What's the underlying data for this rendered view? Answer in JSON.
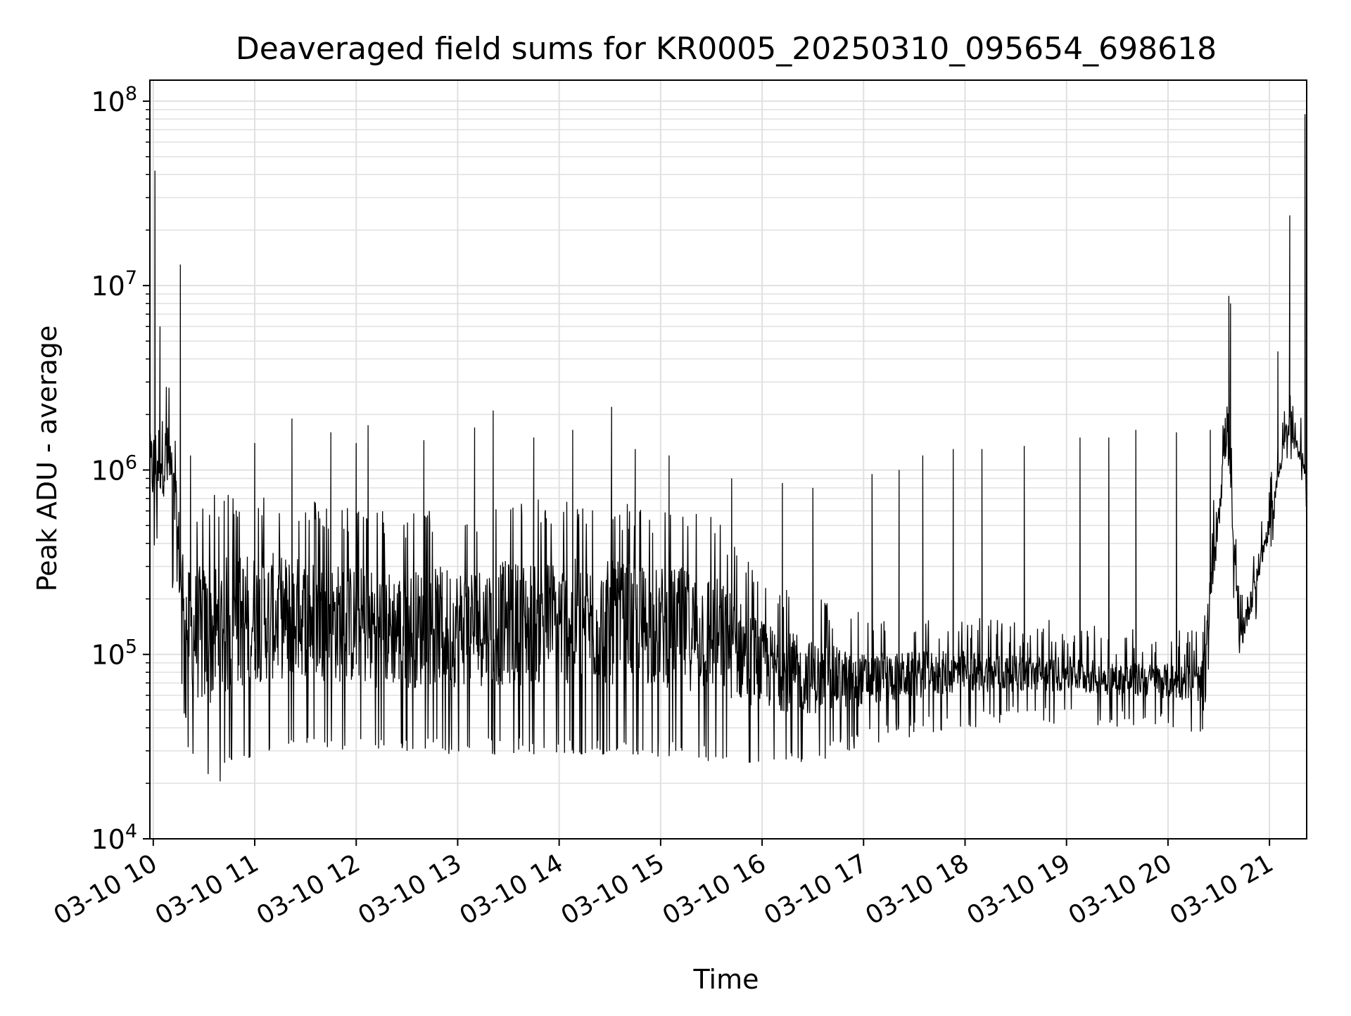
{
  "chart_data": {
    "type": "line",
    "title": "Deaveraged field sums for KR0005_20250310_095654_698618",
    "xlabel": "Time",
    "ylabel": "Peak ADU - average",
    "yscale": "log",
    "ylim": [
      10000,
      130000000
    ],
    "xlim": [
      "2025-03-10 09:58",
      "2025-03-10 21:22"
    ],
    "grid": true,
    "line_color": "#000000",
    "grid_color": "#e0e0e0",
    "x_ticks": [
      {
        "value": "2025-03-10 10:00",
        "label": "03-10 10"
      },
      {
        "value": "2025-03-10 11:00",
        "label": "03-10 11"
      },
      {
        "value": "2025-03-10 12:00",
        "label": "03-10 12"
      },
      {
        "value": "2025-03-10 13:00",
        "label": "03-10 13"
      },
      {
        "value": "2025-03-10 14:00",
        "label": "03-10 14"
      },
      {
        "value": "2025-03-10 15:00",
        "label": "03-10 15"
      },
      {
        "value": "2025-03-10 16:00",
        "label": "03-10 16"
      },
      {
        "value": "2025-03-10 17:00",
        "label": "03-10 17"
      },
      {
        "value": "2025-03-10 18:00",
        "label": "03-10 18"
      },
      {
        "value": "2025-03-10 19:00",
        "label": "03-10 19"
      },
      {
        "value": "2025-03-10 20:00",
        "label": "03-10 20"
      },
      {
        "value": "2025-03-10 21:00",
        "label": "03-10 21"
      }
    ],
    "y_ticks": [
      {
        "value": 10000,
        "base": "10",
        "exp": "4"
      },
      {
        "value": 100000,
        "base": "10",
        "exp": "5"
      },
      {
        "value": 1000000,
        "base": "10",
        "exp": "6"
      },
      {
        "value": 10000000,
        "base": "10",
        "exp": "7"
      },
      {
        "value": 100000000,
        "base": "10",
        "exp": "8"
      }
    ],
    "series": [
      {
        "envelope": [
          {
            "t": "2025-03-10 09:58",
            "low": 400000,
            "high": 2000000
          },
          {
            "t": "2025-03-10 10:05",
            "low": 500000,
            "high": 2500000
          },
          {
            "t": "2025-03-10 10:10",
            "low": 400000,
            "high": 2200000
          },
          {
            "t": "2025-03-10 10:15",
            "low": 120000,
            "high": 900000
          },
          {
            "t": "2025-03-10 10:20",
            "low": 40000,
            "high": 400000
          },
          {
            "t": "2025-03-10 10:30",
            "low": 22000,
            "high": 500000
          },
          {
            "t": "2025-03-10 10:45",
            "low": 28000,
            "high": 550000
          },
          {
            "t": "2025-03-10 11:00",
            "low": 35000,
            "high": 550000
          },
          {
            "t": "2025-03-10 11:30",
            "low": 40000,
            "high": 500000
          },
          {
            "t": "2025-03-10 12:00",
            "low": 35000,
            "high": 450000
          },
          {
            "t": "2025-03-10 12:30",
            "low": 35000,
            "high": 420000
          },
          {
            "t": "2025-03-10 13:00",
            "low": 35000,
            "high": 450000
          },
          {
            "t": "2025-03-10 13:30",
            "low": 35000,
            "high": 480000
          },
          {
            "t": "2025-03-10 14:00",
            "low": 35000,
            "high": 500000
          },
          {
            "t": "2025-03-10 14:30",
            "low": 35000,
            "high": 480000
          },
          {
            "t": "2025-03-10 15:00",
            "low": 35000,
            "high": 450000
          },
          {
            "t": "2025-03-10 15:30",
            "low": 32000,
            "high": 420000
          },
          {
            "t": "2025-03-10 16:00",
            "low": 32000,
            "high": 200000
          },
          {
            "t": "2025-03-10 16:30",
            "low": 32000,
            "high": 150000
          },
          {
            "t": "2025-03-10 17:00",
            "low": 40000,
            "high": 120000
          },
          {
            "t": "2025-03-10 17:30",
            "low": 45000,
            "high": 120000
          },
          {
            "t": "2025-03-10 18:00",
            "low": 50000,
            "high": 120000
          },
          {
            "t": "2025-03-10 18:30",
            "low": 52000,
            "high": 110000
          },
          {
            "t": "2025-03-10 19:00",
            "low": 52000,
            "high": 110000
          },
          {
            "t": "2025-03-10 19:30",
            "low": 50000,
            "high": 100000
          },
          {
            "t": "2025-03-10 20:00",
            "low": 48000,
            "high": 100000
          },
          {
            "t": "2025-03-10 20:20",
            "low": 45000,
            "high": 100000
          },
          {
            "t": "2025-03-10 20:35",
            "low": 1000000,
            "high": 3000000
          },
          {
            "t": "2025-03-10 20:42",
            "low": 80000,
            "high": 150000
          },
          {
            "t": "2025-03-10 20:50",
            "low": 150000,
            "high": 300000
          },
          {
            "t": "2025-03-10 21:00",
            "low": 400000,
            "high": 600000
          },
          {
            "t": "2025-03-10 21:10",
            "low": 1300000,
            "high": 2000000
          },
          {
            "t": "2025-03-10 21:20",
            "low": 1000000,
            "high": 1300000
          },
          {
            "t": "2025-03-10 21:22",
            "low": 380000,
            "high": 1100000
          }
        ],
        "spikes": [
          {
            "t": "2025-03-10 10:01",
            "y": 42000000
          },
          {
            "t": "2025-03-10 10:04",
            "y": 6000000
          },
          {
            "t": "2025-03-10 10:16",
            "y": 13000000
          },
          {
            "t": "2025-03-10 10:22",
            "y": 1200000
          },
          {
            "t": "2025-03-10 11:00",
            "y": 1400000
          },
          {
            "t": "2025-03-10 11:22",
            "y": 1900000
          },
          {
            "t": "2025-03-10 11:45",
            "y": 1600000
          },
          {
            "t": "2025-03-10 12:00",
            "y": 1400000
          },
          {
            "t": "2025-03-10 12:07",
            "y": 1750000
          },
          {
            "t": "2025-03-10 12:40",
            "y": 1450000
          },
          {
            "t": "2025-03-10 13:10",
            "y": 1700000
          },
          {
            "t": "2025-03-10 13:21",
            "y": 2100000
          },
          {
            "t": "2025-03-10 13:45",
            "y": 1500000
          },
          {
            "t": "2025-03-10 14:08",
            "y": 1650000
          },
          {
            "t": "2025-03-10 14:31",
            "y": 2200000
          },
          {
            "t": "2025-03-10 14:45",
            "y": 1300000
          },
          {
            "t": "2025-03-10 15:05",
            "y": 1200000
          },
          {
            "t": "2025-03-10 15:42",
            "y": 900000
          },
          {
            "t": "2025-03-10 16:12",
            "y": 850000
          },
          {
            "t": "2025-03-10 16:30",
            "y": 800000
          },
          {
            "t": "2025-03-10 17:05",
            "y": 950000
          },
          {
            "t": "2025-03-10 17:21",
            "y": 1000000
          },
          {
            "t": "2025-03-10 17:35",
            "y": 1200000
          },
          {
            "t": "2025-03-10 17:53",
            "y": 1300000
          },
          {
            "t": "2025-03-10 18:10",
            "y": 1300000
          },
          {
            "t": "2025-03-10 18:35",
            "y": 1350000
          },
          {
            "t": "2025-03-10 19:08",
            "y": 1500000
          },
          {
            "t": "2025-03-10 19:25",
            "y": 1500000
          },
          {
            "t": "2025-03-10 19:41",
            "y": 1650000
          },
          {
            "t": "2025-03-10 20:05",
            "y": 1600000
          },
          {
            "t": "2025-03-10 20:25",
            "y": 1650000
          },
          {
            "t": "2025-03-10 20:36",
            "y": 8800000
          },
          {
            "t": "2025-03-10 20:37",
            "y": 8000000
          },
          {
            "t": "2025-03-10 21:05",
            "y": 4400000
          },
          {
            "t": "2025-03-10 21:12",
            "y": 24000000
          },
          {
            "t": "2025-03-10 21:21",
            "y": 85000000
          }
        ]
      }
    ]
  }
}
